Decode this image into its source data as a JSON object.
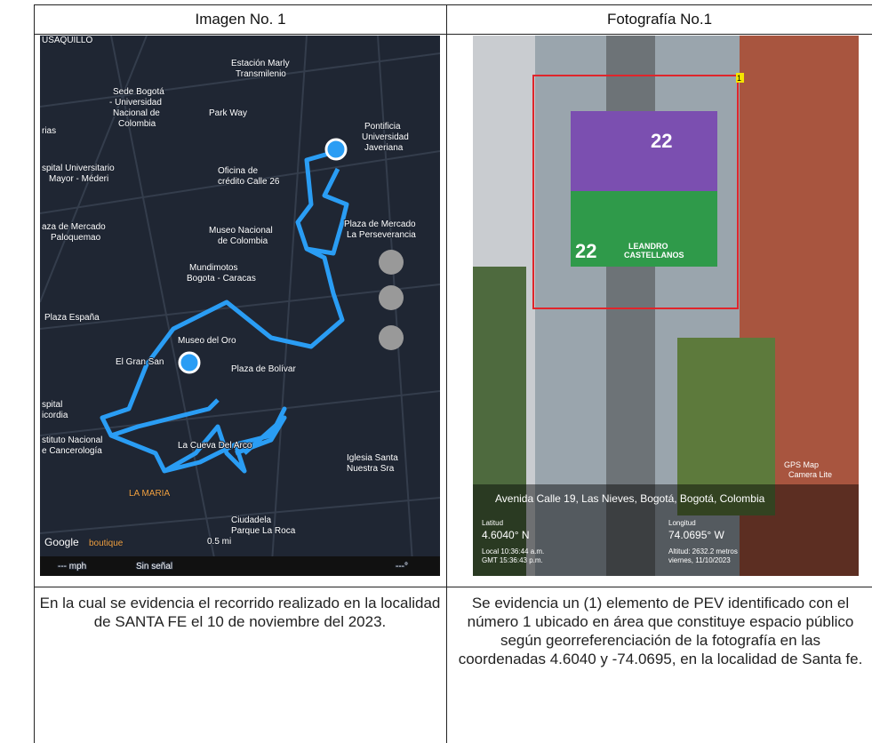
{
  "table": {
    "header": [
      "Imagen No. 1",
      "Fotografía No.1"
    ],
    "map": {
      "labels": [
        "USAQUILLO",
        "Estación Marly",
        "Transmilenio",
        "Sede Bogotá",
        "- Universidad",
        "Nacional de",
        "Colombia",
        "Park Way",
        "Pontificia",
        "Universidad",
        "Javeriana",
        "rias",
        "spital Universitario",
        "Mayor - Méderi",
        "Oficina de",
        "crédito Calle 26",
        "aza de Mercado",
        "Paloquemao",
        "Museo Nacional",
        "de Colombia",
        "Plaza de Mercado",
        "La Perseverancia",
        "Mundimotos",
        "Bogota - Caracas",
        "Plaza España",
        "Museo del Oro",
        "El Gran San",
        "Plaza de Bolívar",
        "spital",
        "icordia",
        "stituto Nacional",
        "e Cancerología",
        "La Cueva Del Arco",
        "Iglesia Santa",
        "Nuestra Sra",
        "LA MARIA",
        "Ciudadela",
        "Parque La Roca",
        "Google",
        "boutique",
        "0.5 mi",
        "--- mph",
        "Sin señal",
        "---°"
      ]
    },
    "photo": {
      "marker": "1",
      "banner_number": "22",
      "banner_name": [
        "LEANDRO",
        "CASTELLANOS"
      ],
      "watermark": [
        "GPS Map",
        "Camera Lite"
      ],
      "address": "Avenida Calle 19, Las Nieves, Bogotá, Bogotá, Colombia",
      "latitude_label": "Latitud",
      "latitude": "4.6040° N",
      "longitude_label": "Longitud",
      "longitude": "74.0695° W",
      "local_time": "Local 10:36:44 a.m.",
      "gmt_time": "GMT 15:36:43 p.m.",
      "altitude": "Altitud: 2632.2 metros",
      "date": "viernes, 11/10/2023"
    },
    "captions": [
      "En la cual se evidencia el recorrido realizado en la localidad de SANTA FE el 10 de noviembre del 2023.",
      "Se evidencia un (1) elemento de PEV identificado con el número 1 ubicado en área que constituye espacio público según georreferenciación de la fotografía en las coordenadas 4.6040 y -74.0695, en la localidad de Santa fe."
    ]
  }
}
